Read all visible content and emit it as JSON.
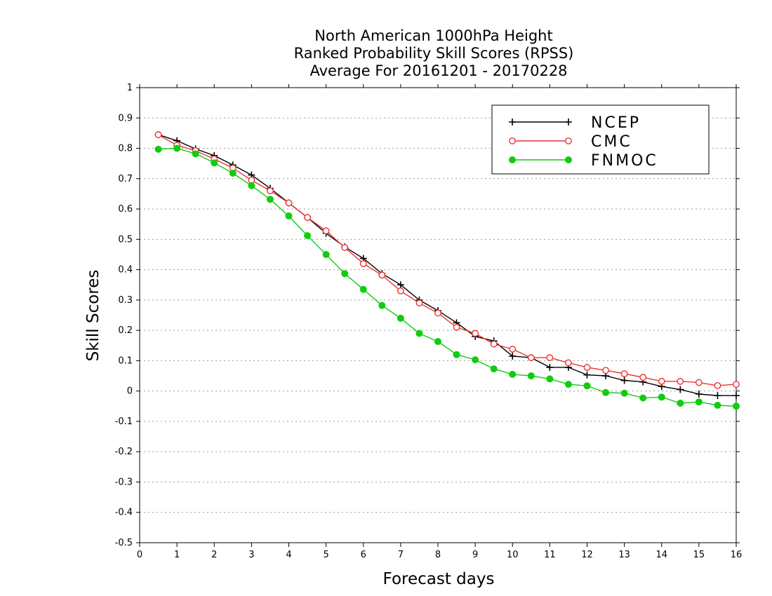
{
  "chart_data": {
    "type": "line",
    "title": [
      "North American 1000hPa Height",
      "Ranked Probability Skill Scores (RPSS)",
      "Average For 20161201 - 20170228"
    ],
    "xlabel": "Forecast days",
    "ylabel": "Skill Scores",
    "xlim": [
      0,
      16
    ],
    "ylim": [
      -0.5,
      1
    ],
    "x_ticks": [
      0,
      1,
      2,
      3,
      4,
      5,
      6,
      7,
      8,
      9,
      10,
      11,
      12,
      13,
      14,
      15,
      16
    ],
    "y_ticks": [
      -0.5,
      -0.4,
      -0.3,
      -0.2,
      -0.1,
      0,
      0.1,
      0.2,
      0.3,
      0.4,
      0.5,
      0.6,
      0.7,
      0.8,
      0.9,
      1
    ],
    "y_tick_labels": [
      "-0.5",
      "-0.4",
      "-0.3",
      "-0.2",
      "-0.1",
      "0",
      "0.1",
      "0.2",
      "0.3",
      "0.4",
      "0.5",
      "0.6",
      "0.7",
      "0.8",
      "0.9",
      "1"
    ],
    "grid": "horizontal dotted",
    "legend_position": "top-right",
    "x": [
      0.5,
      1,
      1.5,
      2,
      2.5,
      3,
      3.5,
      4,
      4.5,
      5,
      5.5,
      6,
      6.5,
      7,
      7.5,
      8,
      8.5,
      9,
      9.5,
      10,
      10.5,
      11,
      11.5,
      12,
      12.5,
      13,
      13.5,
      14,
      14.5,
      15,
      15.5,
      16
    ],
    "series": [
      {
        "name": "NCEP",
        "color": "#000000",
        "marker": "plus",
        "values": [
          0.845,
          0.825,
          0.798,
          0.776,
          0.745,
          0.712,
          0.668,
          0.62,
          0.572,
          0.52,
          0.475,
          0.437,
          0.387,
          0.35,
          0.3,
          0.265,
          0.225,
          0.18,
          0.165,
          0.115,
          0.11,
          0.078,
          0.078,
          0.053,
          0.05,
          0.035,
          0.03,
          0.015,
          0.005,
          -0.01,
          -0.015,
          -0.015
        ]
      },
      {
        "name": "CMC",
        "color": "#ee3333",
        "marker": "open-circle",
        "values": [
          0.845,
          0.81,
          0.792,
          0.765,
          0.735,
          0.695,
          0.66,
          0.62,
          0.572,
          0.528,
          0.473,
          0.42,
          0.382,
          0.33,
          0.29,
          0.257,
          0.21,
          0.19,
          0.155,
          0.138,
          0.11,
          0.11,
          0.093,
          0.078,
          0.068,
          0.057,
          0.045,
          0.032,
          0.032,
          0.028,
          0.018,
          0.022
        ]
      },
      {
        "name": "FNMOC",
        "color": "#11cc11",
        "marker": "filled-circle",
        "values": [
          0.797,
          0.8,
          0.782,
          0.752,
          0.718,
          0.677,
          0.632,
          0.577,
          0.512,
          0.45,
          0.387,
          0.335,
          0.282,
          0.24,
          0.19,
          0.163,
          0.12,
          0.103,
          0.073,
          0.055,
          0.05,
          0.04,
          0.022,
          0.017,
          -0.005,
          -0.007,
          -0.023,
          -0.02,
          -0.04,
          -0.036,
          -0.047,
          -0.05
        ]
      }
    ]
  }
}
